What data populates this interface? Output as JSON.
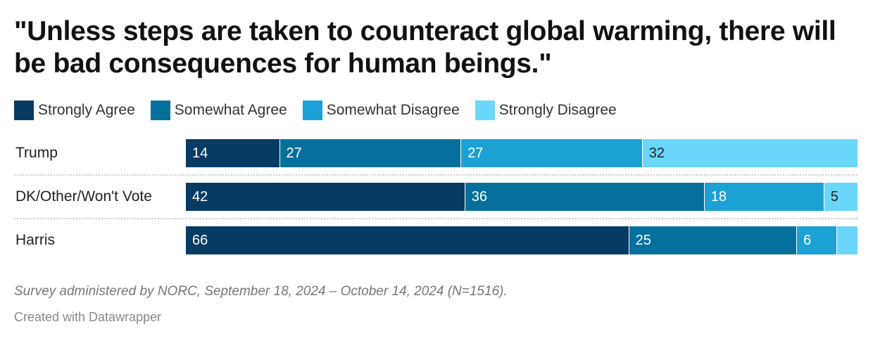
{
  "chart_data": {
    "type": "bar",
    "orientation": "horizontal",
    "stacked": true,
    "title": "\"Unless steps are taken to counteract global warming, there will be bad consequences for human beings.\"",
    "categories": [
      "Trump",
      "DK/Other/Won't Vote",
      "Harris"
    ],
    "series": [
      {
        "name": "Strongly Agree",
        "color": "#073b63",
        "values": [
          14,
          42,
          66
        ]
      },
      {
        "name": "Somewhat Agree",
        "color": "#06709c",
        "values": [
          27,
          36,
          25
        ]
      },
      {
        "name": "Somewhat Disagree",
        "color": "#1ba1d3",
        "values": [
          27,
          18,
          6
        ]
      },
      {
        "name": "Strongly Disagree",
        "color": "#6ad6fb",
        "values": [
          32,
          5,
          3
        ]
      }
    ],
    "value_labels": [
      [
        "14",
        "27",
        "27",
        "32"
      ],
      [
        "42",
        "36",
        "18",
        "5"
      ],
      [
        "66",
        "25",
        "6",
        ""
      ]
    ],
    "label_dark_on_series": [
      "Strongly Disagree"
    ],
    "xlim": [
      0,
      100
    ],
    "legend_position": "top-left",
    "grid": false
  },
  "note": "Survey administered by NORC, September 18, 2024 – October 14, 2024 (N=1516).",
  "credit": "Created with Datawrapper"
}
